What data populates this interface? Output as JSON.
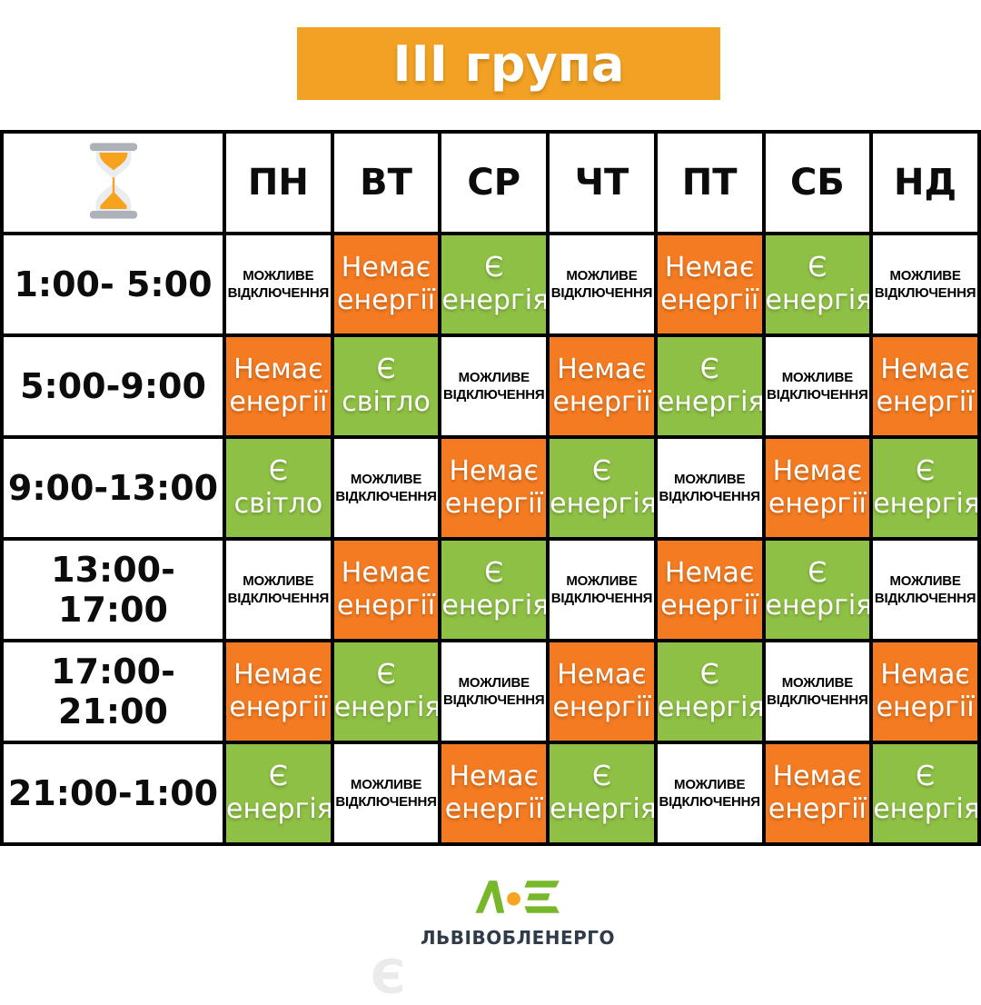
{
  "title": "ІІІ група",
  "colors": {
    "banner_orange": "#F2A124",
    "cell_orange": "#F47B21",
    "cell_green": "#8EC045",
    "table_border": "#000000",
    "logo_green": "#76B82A",
    "logo_dot_orange": "#F7A521",
    "logo_text": "#2F3B49",
    "watermark_gray": "#EBEBED"
  },
  "header": {
    "corner_icon": "hourglass-icon",
    "days": [
      "ПН",
      "ВТ",
      "СР",
      "ЧТ",
      "ПТ",
      "СБ",
      "НД"
    ]
  },
  "rows": [
    {
      "time": "1:00- 5:00",
      "cells": [
        {
          "state": "maybe",
          "lines": [
            "МОЖЛИВЕ",
            "ВІДКЛЮЧЕННЯ"
          ]
        },
        {
          "state": "off",
          "lines": [
            "Немає",
            "енергії"
          ]
        },
        {
          "state": "on",
          "lines": [
            "Є",
            "енергія"
          ]
        },
        {
          "state": "maybe",
          "lines": [
            "МОЖЛИВЕ",
            "ВІДКЛЮЧЕННЯ"
          ]
        },
        {
          "state": "off",
          "lines": [
            "Немає",
            "енергії"
          ]
        },
        {
          "state": "on",
          "lines": [
            "Є",
            "енергія"
          ]
        },
        {
          "state": "maybe",
          "lines": [
            "МОЖЛИВЕ",
            "ВІДКЛЮЧЕННЯ"
          ]
        }
      ]
    },
    {
      "time": "5:00-9:00",
      "cells": [
        {
          "state": "off",
          "lines": [
            "Немає",
            "енергії"
          ]
        },
        {
          "state": "on",
          "lines": [
            "Є",
            "світло"
          ]
        },
        {
          "state": "maybe",
          "lines": [
            "МОЖЛИВЕ",
            "ВІДКЛЮЧЕННЯ"
          ]
        },
        {
          "state": "off",
          "lines": [
            "Немає",
            "енергії"
          ]
        },
        {
          "state": "on",
          "lines": [
            "Є",
            "енергія"
          ]
        },
        {
          "state": "maybe",
          "lines": [
            "МОЖЛИВЕ",
            "ВІДКЛЮЧЕННЯ"
          ]
        },
        {
          "state": "off",
          "lines": [
            "Немає",
            "енергії"
          ]
        }
      ]
    },
    {
      "time": "9:00-13:00",
      "cells": [
        {
          "state": "on",
          "lines": [
            "Є",
            "світло"
          ]
        },
        {
          "state": "maybe",
          "lines": [
            "МОЖЛИВЕ",
            "ВІДКЛЮЧЕННЯ"
          ]
        },
        {
          "state": "off",
          "lines": [
            "Немає",
            "енергії"
          ]
        },
        {
          "state": "on",
          "lines": [
            "Є",
            "енергія"
          ]
        },
        {
          "state": "maybe",
          "lines": [
            "МОЖЛИВЕ",
            "ВІДКЛЮЧЕННЯ"
          ]
        },
        {
          "state": "off",
          "lines": [
            "Немає",
            "енергії"
          ]
        },
        {
          "state": "on",
          "lines": [
            "Є",
            "енергія"
          ]
        }
      ]
    },
    {
      "time": "13:00-17:00",
      "cells": [
        {
          "state": "maybe",
          "lines": [
            "МОЖЛИВЕ",
            "ВІДКЛЮЧЕННЯ"
          ]
        },
        {
          "state": "off",
          "lines": [
            "Немає",
            "енергії"
          ]
        },
        {
          "state": "on",
          "lines": [
            "Є",
            "енергія"
          ]
        },
        {
          "state": "maybe",
          "lines": [
            "МОЖЛИВЕ",
            "ВІДКЛЮЧЕННЯ"
          ]
        },
        {
          "state": "off",
          "lines": [
            "Немає",
            "енергії"
          ]
        },
        {
          "state": "on",
          "lines": [
            "Є",
            "енергія"
          ]
        },
        {
          "state": "maybe",
          "lines": [
            "МОЖЛИВЕ",
            "ВІДКЛЮЧЕННЯ"
          ]
        }
      ]
    },
    {
      "time": "17:00- 21:00",
      "cells": [
        {
          "state": "off",
          "lines": [
            "Немає",
            "енергії"
          ]
        },
        {
          "state": "on",
          "lines": [
            "Є",
            "енергія"
          ]
        },
        {
          "state": "maybe",
          "lines": [
            "МОЖЛИВЕ",
            "ВІДКЛЮЧЕННЯ"
          ]
        },
        {
          "state": "off",
          "lines": [
            "Немає",
            "енергії"
          ]
        },
        {
          "state": "on",
          "lines": [
            "Є",
            "енергія"
          ]
        },
        {
          "state": "maybe",
          "lines": [
            "МОЖЛИВЕ",
            "ВІДКЛЮЧЕННЯ"
          ]
        },
        {
          "state": "off",
          "lines": [
            "Немає",
            "енергії"
          ]
        }
      ]
    },
    {
      "time": "21:00-1:00",
      "cells": [
        {
          "state": "on",
          "lines": [
            "Є",
            "енергія"
          ]
        },
        {
          "state": "maybe",
          "lines": [
            "МОЖЛИВЕ",
            "ВІДКЛЮЧЕННЯ"
          ]
        },
        {
          "state": "off",
          "lines": [
            "Немає",
            "енергії"
          ]
        },
        {
          "state": "on",
          "lines": [
            "Є",
            "енергія"
          ]
        },
        {
          "state": "maybe",
          "lines": [
            "МОЖЛИВЕ",
            "ВІДКЛЮЧЕННЯ"
          ]
        },
        {
          "state": "off",
          "lines": [
            "Немає",
            "енергії"
          ]
        },
        {
          "state": "on",
          "lines": [
            "Є",
            "енергія"
          ]
        }
      ]
    }
  ],
  "footer": {
    "company": "ЛЬВІВОБЛЕНЕРГО",
    "watermark": "Є"
  }
}
